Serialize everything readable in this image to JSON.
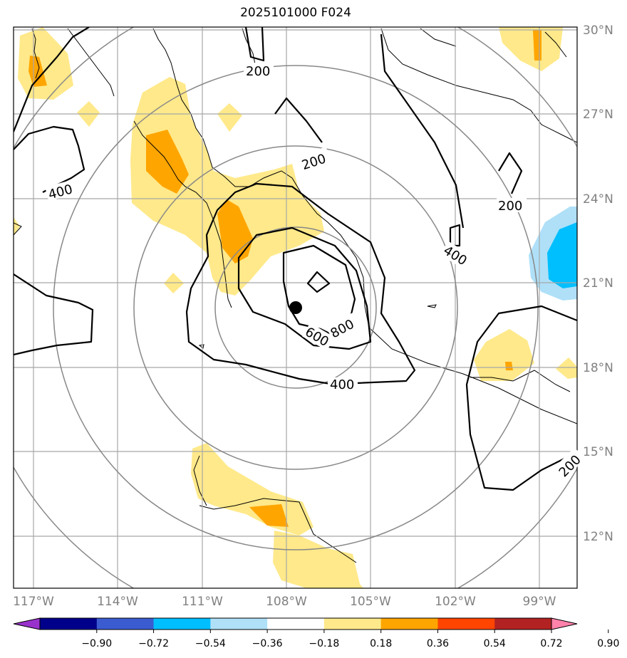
{
  "title": "2025101000 F024",
  "lat_labels": [
    "30°N",
    "27°N",
    "24°N",
    "21°N",
    "18°N",
    "15°N",
    "12°N"
  ],
  "lon_labels": [
    "117°W",
    "114°W",
    "111°W",
    "108°W",
    "105°W",
    "102°W",
    "99°W"
  ],
  "contour_labels": [
    "200",
    "200",
    "200",
    "200",
    "400",
    "400",
    "400",
    "600",
    "800"
  ],
  "colorbar": {
    "ticks": [
      "−0.90",
      "−0.72",
      "−0.54",
      "−0.36",
      "−0.18",
      "0.18",
      "0.36",
      "0.54",
      "0.72",
      "0.90"
    ],
    "colors": [
      "#9932cc",
      "#00008b",
      "#3b5bd1",
      "#00bfff",
      "#afe0f8",
      "#ffffff",
      "#ffe98a",
      "#ffa500",
      "#ff4500",
      "#b22222",
      "#ff82ab"
    ]
  },
  "colors": {
    "grid": "#a8a8a8",
    "range_ring": "#888888",
    "contour": "#000000",
    "coast": "#000000",
    "label": "#808080",
    "center_marker": "#000000"
  }
}
